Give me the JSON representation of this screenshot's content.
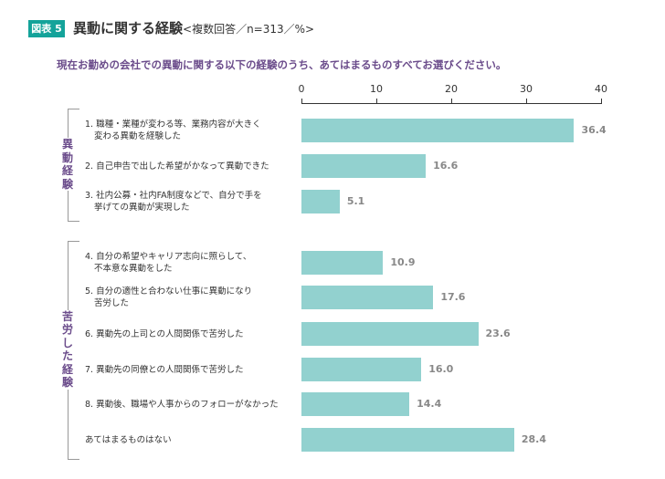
{
  "header": {
    "badge": "図表 5",
    "title": "異動に関する経験",
    "subtitle": "<複数回答／n=313／%>"
  },
  "question": "現在お勤めの会社での異動に関する以下の経験のうち、あてはまるものすべてお選びください。",
  "chart_data": {
    "type": "bar",
    "orientation": "horizontal",
    "xlim": [
      0,
      40
    ],
    "ticks": [
      "0",
      "10",
      "20",
      "30",
      "40"
    ],
    "bar_color": "#92d1cf",
    "groups": [
      {
        "label": "異動経験",
        "items": [
          0,
          1,
          2
        ]
      },
      {
        "label": "苦労した経験",
        "items": [
          3,
          4,
          5,
          6,
          7,
          8
        ]
      }
    ],
    "categories": [
      [
        "1. 職種・業種が変わる等、業務内容が大きく",
        "変わる異動を経験した"
      ],
      [
        "2. 自己申告で出した希望がかなって異動できた"
      ],
      [
        "3. 社内公募・社内FA制度などで、自分で手を",
        "挙げての異動が実現した"
      ],
      [
        "4. 自分の希望やキャリア志向に照らして、",
        "不本意な異動をした"
      ],
      [
        "5. 自分の適性と合わない仕事に異動になり",
        "苦労した"
      ],
      [
        "6. 異動先の上司との人間関係で苦労した"
      ],
      [
        "7. 異動先の同僚との人間関係で苦労した"
      ],
      [
        "8. 異動後、職場や人事からのフォローがなかった"
      ],
      [
        "あてはまるものはない"
      ]
    ],
    "values": [
      36.4,
      16.6,
      5.1,
      10.9,
      17.6,
      23.6,
      16.0,
      14.4,
      28.4
    ],
    "value_labels": [
      "36.4",
      "16.6",
      "5.1",
      "10.9",
      "17.6",
      "23.6",
      "16.0",
      "14.4",
      "28.4"
    ]
  }
}
